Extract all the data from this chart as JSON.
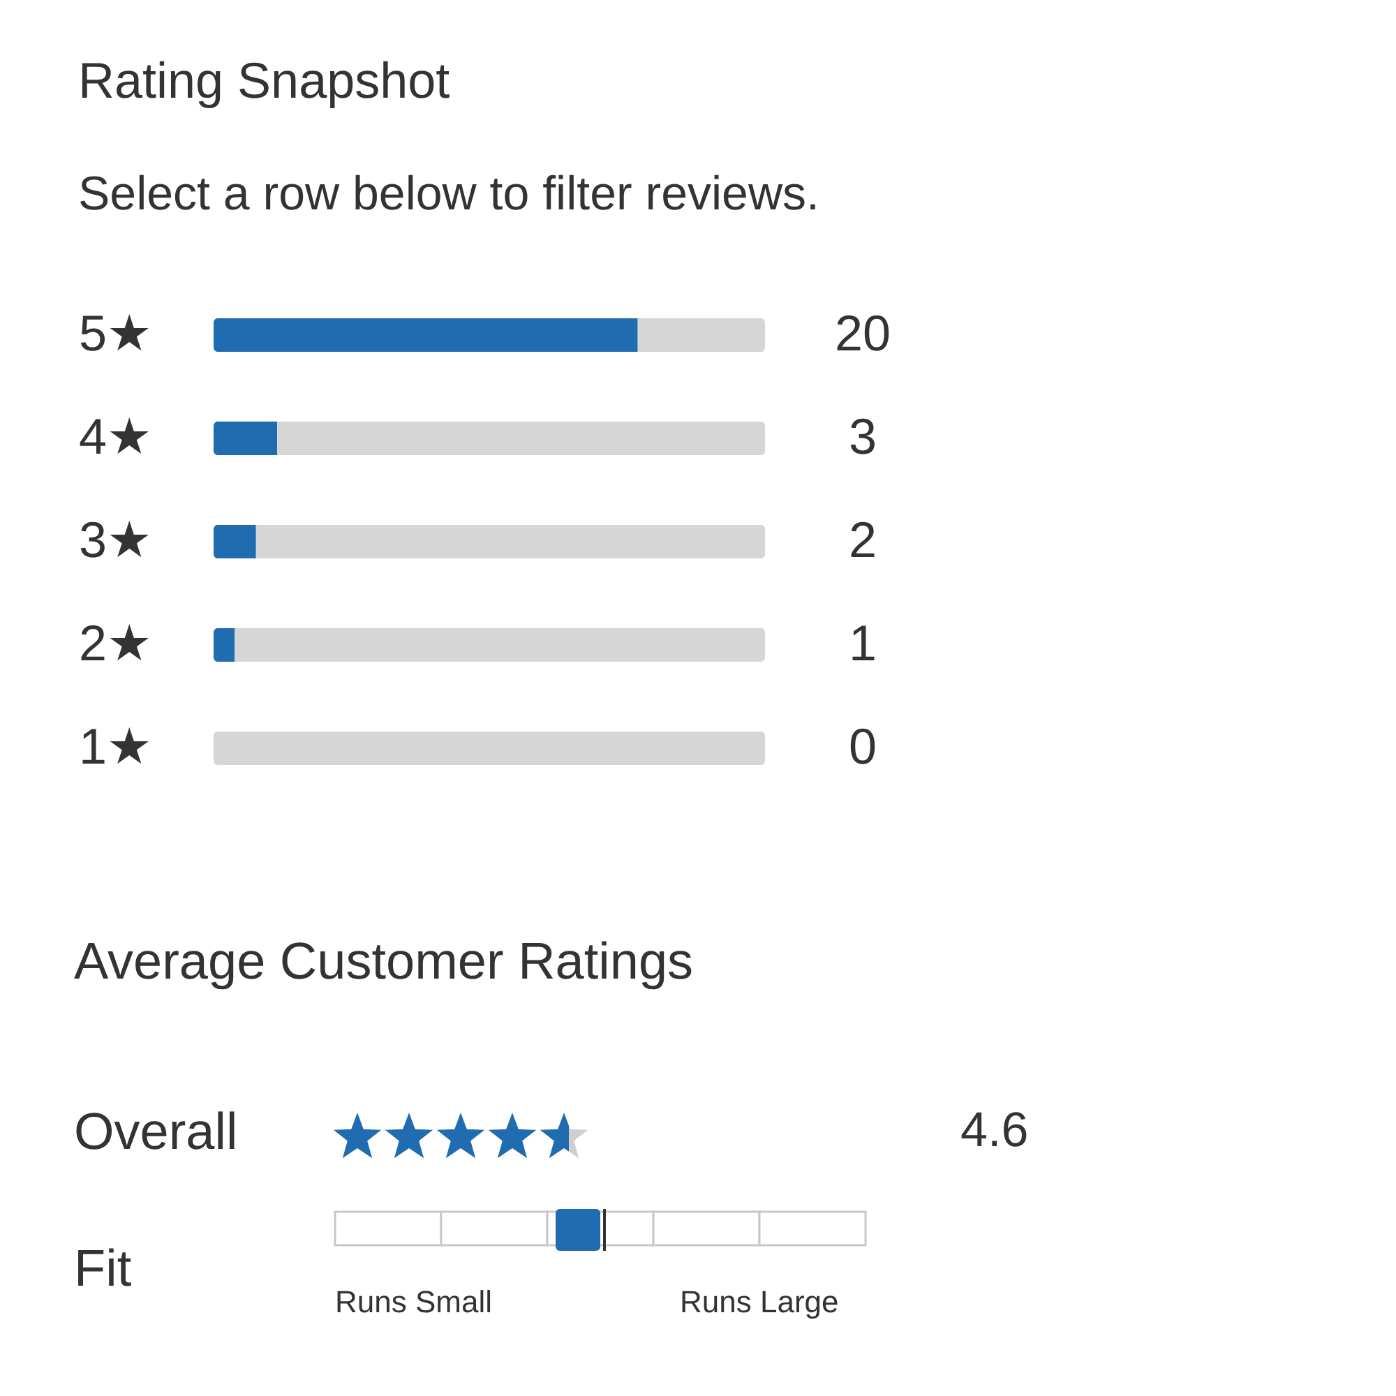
{
  "chart_data": [
    {
      "type": "bar",
      "title": "Rating Snapshot",
      "subtitle": "Select a row below to filter reviews.",
      "orientation": "horizontal",
      "stacked": true,
      "categories": [
        "5★",
        "4★",
        "3★",
        "2★",
        "1★"
      ],
      "series": [
        {
          "color": "#1f6cb0",
          "values": [
            20,
            3,
            2,
            1,
            0
          ],
          "value_labels": [
            "20",
            "3",
            "2",
            "1",
            "0"
          ]
        },
        {
          "color": "#d6d6d6",
          "values": [
            6,
            23,
            24,
            25,
            26
          ]
        }
      ],
      "tick_labels": "y",
      "grid": false,
      "legend": false
    },
    {
      "type": "other",
      "title": "Average Customer Ratings",
      "annotations": [
        "Overall",
        "4.6",
        "Fit",
        "Runs Small",
        "Runs Large"
      ]
    }
  ]
}
